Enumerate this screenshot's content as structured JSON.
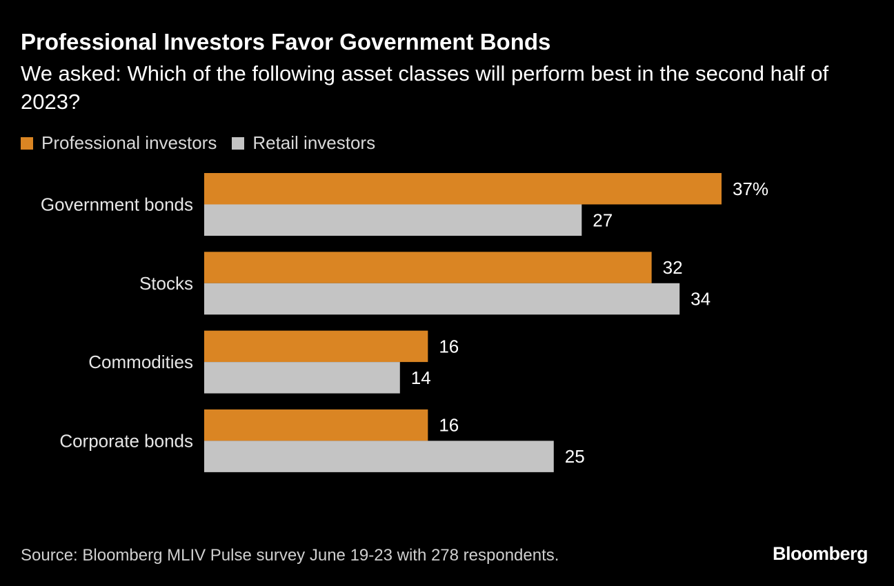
{
  "chart_data": {
    "type": "bar",
    "orientation": "horizontal",
    "title": "Professional Investors Favor Government Bonds",
    "subtitle": "We asked: Which of the following asset classes will perform best in the second half of 2023?",
    "categories": [
      "Government bonds",
      "Stocks",
      "Commodities",
      "Corporate bonds"
    ],
    "series": [
      {
        "name": "Professional investors",
        "color": "#DA8523",
        "values": [
          37,
          32,
          16,
          16
        ],
        "labels": [
          "37%",
          "32",
          "16",
          "16"
        ]
      },
      {
        "name": "Retail investors",
        "color": "#C4C4C4",
        "values": [
          27,
          34,
          14,
          25
        ],
        "labels": [
          "27",
          "34",
          "14",
          "25"
        ]
      }
    ],
    "xlim": [
      0,
      40
    ],
    "grid": false,
    "legend": "top-left",
    "source": "Source: Bloomberg MLIV Pulse survey June 19-23 with 278 respondents."
  },
  "branding": {
    "logo": "Bloomberg"
  }
}
